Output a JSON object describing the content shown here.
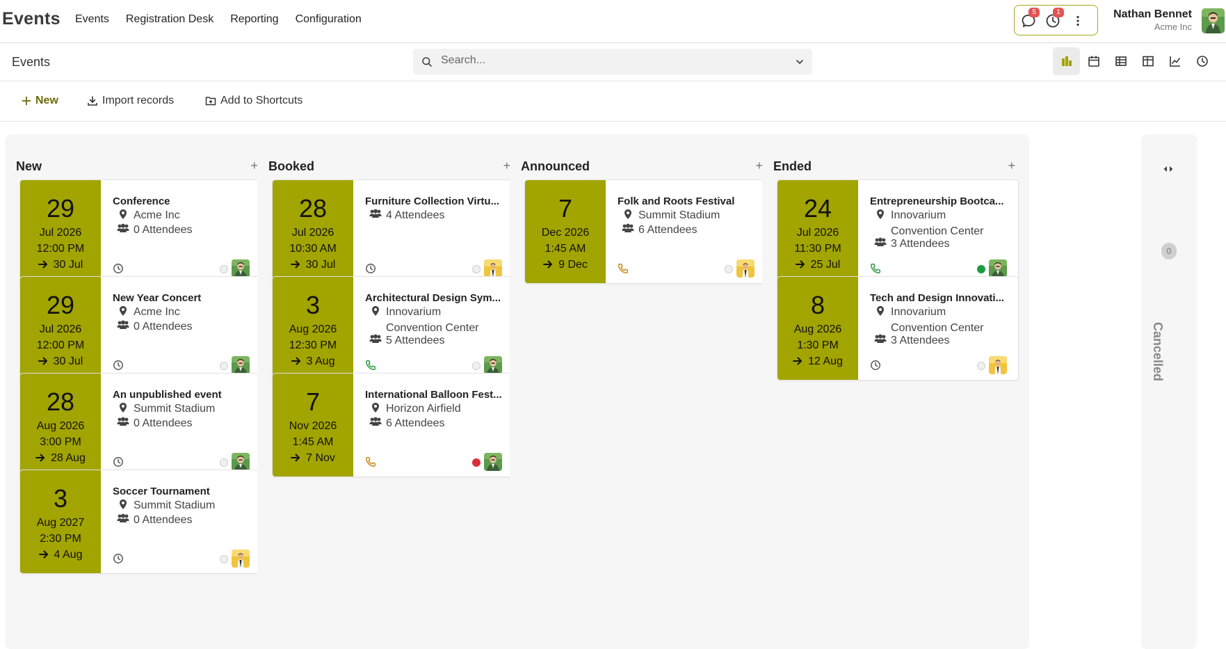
{
  "app": {
    "title": "Events"
  },
  "nav": [
    "Events",
    "Registration Desk",
    "Reporting",
    "Configuration"
  ],
  "systray": {
    "messages_count": "5",
    "activities_count": "1"
  },
  "user": {
    "name": "Nathan Bennet",
    "company": "Acme Inc"
  },
  "breadcrumb": "Events",
  "search": {
    "placeholder": "Search..."
  },
  "actions": {
    "new": "New",
    "import": "Import records",
    "shortcuts": "Add to Shortcuts"
  },
  "colors": {
    "accent": "#a2a400",
    "brand_text": "#6d6b09",
    "phone_green": "#2e9e44",
    "phone_orange": "#c98a1d",
    "status_green": "#1d9b3e",
    "status_red": "#d9303b"
  },
  "columns": [
    {
      "title": "New",
      "cards": [
        {
          "day": "29",
          "month_year": "Jul 2026",
          "time": "12:00 PM",
          "end": "30 Jul",
          "title": "Conference",
          "venue": [
            "Acme Inc"
          ],
          "attendees": "0 Attendees",
          "activity": "clock-icon",
          "status": "none",
          "avatar": "green"
        },
        {
          "day": "29",
          "month_year": "Jul 2026",
          "time": "12:00 PM",
          "end": "30 Jul",
          "title": "New Year Concert",
          "venue": [
            "Acme Inc"
          ],
          "attendees": "0 Attendees",
          "activity": "clock-icon",
          "status": "none",
          "avatar": "green"
        },
        {
          "day": "28",
          "month_year": "Aug 2026",
          "time": "3:00 PM",
          "end": "28 Aug",
          "title": "An unpublished event",
          "venue": [
            "Summit Stadium"
          ],
          "attendees": "0 Attendees",
          "activity": "clock-icon",
          "status": "none",
          "avatar": "green"
        },
        {
          "day": "3",
          "month_year": "Aug 2027",
          "time": "2:30 PM",
          "end": "4 Aug",
          "title": "Soccer Tournament",
          "venue": [
            "Summit Stadium"
          ],
          "attendees": "0 Attendees",
          "activity": "clock-icon",
          "status": "none",
          "avatar": "yellow"
        }
      ]
    },
    {
      "title": "Booked",
      "cards": [
        {
          "day": "28",
          "month_year": "Jul 2026",
          "time": "10:30 AM",
          "end": "30 Jul",
          "title": "Furniture Collection Virtu...",
          "venue": [],
          "attendees": "4 Attendees",
          "activity": "clock-icon",
          "status": "none",
          "avatar": "yellow"
        },
        {
          "day": "3",
          "month_year": "Aug 2026",
          "time": "12:30 PM",
          "end": "3 Aug",
          "title": "Architectural Design Sym...",
          "venue": [
            "Innovarium",
            "Convention Center"
          ],
          "attendees": "5 Attendees",
          "activity": "phone-green-icon",
          "status": "none",
          "avatar": "green"
        },
        {
          "day": "7",
          "month_year": "Nov 2026",
          "time": "1:45 AM",
          "end": "7 Nov",
          "title": "International Balloon Fest...",
          "venue": [
            "Horizon Airfield"
          ],
          "attendees": "6 Attendees",
          "activity": "phone-orange-icon",
          "status": "red",
          "avatar": "green"
        }
      ]
    },
    {
      "title": "Announced",
      "cards": [
        {
          "day": "7",
          "month_year": "Dec 2026",
          "time": "1:45 AM",
          "end": "9 Dec",
          "title": "Folk and Roots Festival",
          "venue": [
            "Summit Stadium"
          ],
          "attendees": "6 Attendees",
          "activity": "phone-orange-icon",
          "status": "none",
          "avatar": "yellow"
        }
      ]
    },
    {
      "title": "Ended",
      "cards": [
        {
          "day": "24",
          "month_year": "Jul 2026",
          "time": "11:30 PM",
          "end": "25 Jul",
          "title": "Entrepreneurship Bootca...",
          "venue": [
            "Innovarium",
            "Convention Center"
          ],
          "attendees": "3 Attendees",
          "activity": "phone-green-icon",
          "status": "green",
          "avatar": "green"
        },
        {
          "day": "8",
          "month_year": "Aug 2026",
          "time": "1:30 PM",
          "end": "12 Aug",
          "title": "Tech and Design Innovati...",
          "venue": [
            "Innovarium",
            "Convention Center"
          ],
          "attendees": "3 Attendees",
          "activity": "clock-icon",
          "status": "none",
          "avatar": "yellow"
        }
      ]
    }
  ],
  "folded_column": {
    "title": "Cancelled",
    "count": "0"
  }
}
